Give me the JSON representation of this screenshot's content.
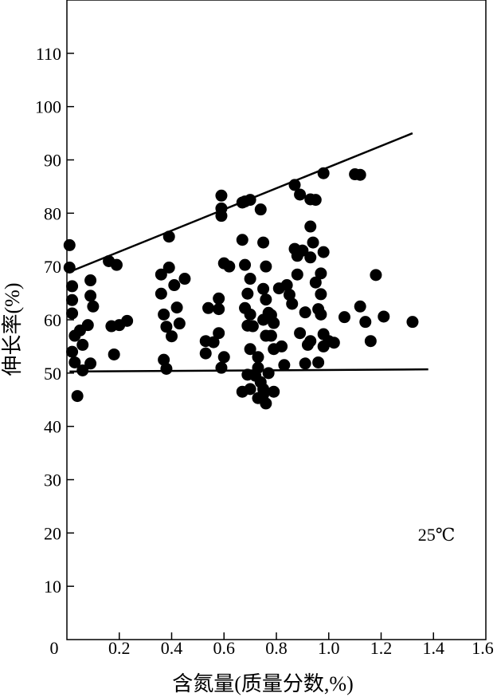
{
  "chart_data": {
    "type": "scatter",
    "title": "",
    "xlabel": "含氮量(质量分数,%)",
    "ylabel": "伸长率(%)",
    "annotation": "25℃",
    "xlim": [
      0,
      1.6
    ],
    "ylim": [
      0,
      120
    ],
    "grid": false,
    "legend": "none",
    "x_ticks": [
      0,
      0.2,
      0.4,
      0.6,
      0.8,
      1.0,
      1.2,
      1.4,
      1.6
    ],
    "x_tick_labels": [
      "0",
      "0.2",
      "0.4",
      "0.6",
      "0.8",
      "1.0",
      "1.2",
      "1.4",
      "1.6"
    ],
    "y_ticks": [
      10,
      20,
      30,
      40,
      50,
      60,
      70,
      80,
      90,
      100,
      110
    ],
    "y_tick_labels": [
      "10",
      "20",
      "30",
      "40",
      "50",
      "60",
      "70",
      "80",
      "90",
      "100",
      "110"
    ],
    "series": [
      {
        "points": [
          [
            0.01,
            74.0
          ],
          [
            0.01,
            69.8
          ],
          [
            0.02,
            66.3
          ],
          [
            0.02,
            63.7
          ],
          [
            0.02,
            61.2
          ],
          [
            0.03,
            57.0
          ],
          [
            0.02,
            54.0
          ],
          [
            0.03,
            52.0
          ],
          [
            0.04,
            45.7
          ],
          [
            0.05,
            58.0
          ],
          [
            0.06,
            55.3
          ],
          [
            0.06,
            50.5
          ],
          [
            0.08,
            59.0
          ],
          [
            0.09,
            67.4
          ],
          [
            0.09,
            64.5
          ],
          [
            0.1,
            62.5
          ],
          [
            0.09,
            51.8
          ],
          [
            0.16,
            71.0
          ],
          [
            0.17,
            58.8
          ],
          [
            0.18,
            53.5
          ],
          [
            0.19,
            70.3
          ],
          [
            0.2,
            59.0
          ],
          [
            0.23,
            59.8
          ],
          [
            0.36,
            68.5
          ],
          [
            0.36,
            64.9
          ],
          [
            0.37,
            61.0
          ],
          [
            0.38,
            58.7
          ],
          [
            0.37,
            52.5
          ],
          [
            0.38,
            50.8
          ],
          [
            0.39,
            75.6
          ],
          [
            0.39,
            69.8
          ],
          [
            0.4,
            56.9
          ],
          [
            0.41,
            66.5
          ],
          [
            0.42,
            62.3
          ],
          [
            0.43,
            59.3
          ],
          [
            0.45,
            67.7
          ],
          [
            0.53,
            56.0
          ],
          [
            0.54,
            62.2
          ],
          [
            0.53,
            53.7
          ],
          [
            0.56,
            55.8
          ],
          [
            0.58,
            57.5
          ],
          [
            0.58,
            64.0
          ],
          [
            0.58,
            62.0
          ],
          [
            0.59,
            83.3
          ],
          [
            0.59,
            80.9
          ],
          [
            0.59,
            79.5
          ],
          [
            0.6,
            70.6
          ],
          [
            0.59,
            51.0
          ],
          [
            0.6,
            53.0
          ],
          [
            0.62,
            70.0
          ],
          [
            0.67,
            82.0
          ],
          [
            0.68,
            82.2
          ],
          [
            0.7,
            82.5
          ],
          [
            0.67,
            75.0
          ],
          [
            0.68,
            70.3
          ],
          [
            0.7,
            67.7
          ],
          [
            0.69,
            64.9
          ],
          [
            0.68,
            62.2
          ],
          [
            0.7,
            61.0
          ],
          [
            0.69,
            58.9
          ],
          [
            0.71,
            58.8
          ],
          [
            0.7,
            54.5
          ],
          [
            0.67,
            46.5
          ],
          [
            0.69,
            49.7
          ],
          [
            0.7,
            47.0
          ],
          [
            0.72,
            49.5
          ],
          [
            0.73,
            51.0
          ],
          [
            0.73,
            53.0
          ],
          [
            0.74,
            48.3
          ],
          [
            0.73,
            45.3
          ],
          [
            0.75,
            46.0
          ],
          [
            0.76,
            44.3
          ],
          [
            0.77,
            50.0
          ],
          [
            0.75,
            47.0
          ],
          [
            0.79,
            46.5
          ],
          [
            0.74,
            80.7
          ],
          [
            0.75,
            74.5
          ],
          [
            0.76,
            70.0
          ],
          [
            0.75,
            65.8
          ],
          [
            0.76,
            63.8
          ],
          [
            0.77,
            61.3
          ],
          [
            0.75,
            60.0
          ],
          [
            0.78,
            60.9
          ],
          [
            0.76,
            57.0
          ],
          [
            0.78,
            57.0
          ],
          [
            0.79,
            59.4
          ],
          [
            0.79,
            54.5
          ],
          [
            0.81,
            65.9
          ],
          [
            0.82,
            55.0
          ],
          [
            0.83,
            51.5
          ],
          [
            0.84,
            66.5
          ],
          [
            0.85,
            64.7
          ],
          [
            0.86,
            63.0
          ],
          [
            0.87,
            85.3
          ],
          [
            0.87,
            73.3
          ],
          [
            0.88,
            72.0
          ],
          [
            0.89,
            83.5
          ],
          [
            0.88,
            68.5
          ],
          [
            0.89,
            57.5
          ],
          [
            0.9,
            73.0
          ],
          [
            0.91,
            61.4
          ],
          [
            0.91,
            51.8
          ],
          [
            0.92,
            55.3
          ],
          [
            0.93,
            82.6
          ],
          [
            0.93,
            77.5
          ],
          [
            0.94,
            74.5
          ],
          [
            0.93,
            71.7
          ],
          [
            0.93,
            56.0
          ],
          [
            0.95,
            82.5
          ],
          [
            0.95,
            67.0
          ],
          [
            0.96,
            62.0
          ],
          [
            0.96,
            52.0
          ],
          [
            0.97,
            68.7
          ],
          [
            0.97,
            64.8
          ],
          [
            0.97,
            61.0
          ],
          [
            0.98,
            87.5
          ],
          [
            0.98,
            72.7
          ],
          [
            0.98,
            57.3
          ],
          [
            0.98,
            55.0
          ],
          [
            1.0,
            56.0
          ],
          [
            1.02,
            55.7
          ],
          [
            1.06,
            60.5
          ],
          [
            1.1,
            87.3
          ],
          [
            1.12,
            87.2
          ],
          [
            1.12,
            62.5
          ],
          [
            1.14,
            59.6
          ],
          [
            1.16,
            56.0
          ],
          [
            1.18,
            68.4
          ],
          [
            1.21,
            60.6
          ],
          [
            1.32,
            59.6
          ]
        ]
      }
    ],
    "lines": [
      {
        "from": [
          0.01,
          69.0
        ],
        "to": [
          1.32,
          95.0
        ]
      },
      {
        "from": [
          0.01,
          50.3
        ],
        "to": [
          1.38,
          50.7
        ]
      }
    ]
  }
}
